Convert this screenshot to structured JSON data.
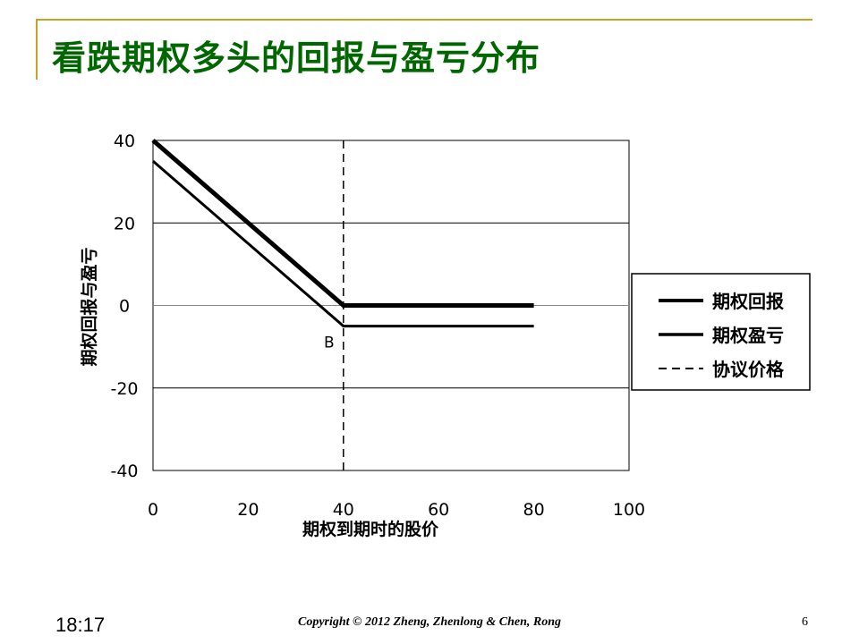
{
  "slide": {
    "title": "看跌期权多头的回报与盈亏分布",
    "footer": {
      "time": "18:17",
      "copyright": "Copyright © 2012 Zheng, Zhenlong & Chen, Rong",
      "page": "6"
    }
  },
  "colors": {
    "title": "#006600",
    "accent_rule": "#c9a227",
    "series": "#000000",
    "grid": "#000000",
    "plot_bg": "#ffffff"
  },
  "chart_data": {
    "type": "line",
    "title": "",
    "xlabel": "期权到期时的股价",
    "ylabel": "期权回报与盈亏",
    "xlim": [
      0,
      100
    ],
    "ylim": [
      -40,
      40
    ],
    "xticks": [
      0,
      20,
      40,
      60,
      80,
      100
    ],
    "yticks": [
      -40,
      -20,
      0,
      20,
      40
    ],
    "grid": "horizontal",
    "legend_position": "right",
    "series": [
      {
        "name": "期权回报",
        "style": "thick-solid",
        "points": [
          [
            0,
            40
          ],
          [
            40,
            0
          ],
          [
            80,
            0
          ]
        ]
      },
      {
        "name": "期权盈亏",
        "style": "solid",
        "points": [
          [
            0,
            35
          ],
          [
            40,
            -5
          ],
          [
            80,
            -5
          ]
        ]
      },
      {
        "name": "协议价格",
        "style": "dashed",
        "points": [
          [
            40,
            40
          ],
          [
            40,
            -40
          ]
        ]
      }
    ],
    "annotations": [
      {
        "text": "B",
        "x": 37,
        "y": -8
      }
    ]
  }
}
